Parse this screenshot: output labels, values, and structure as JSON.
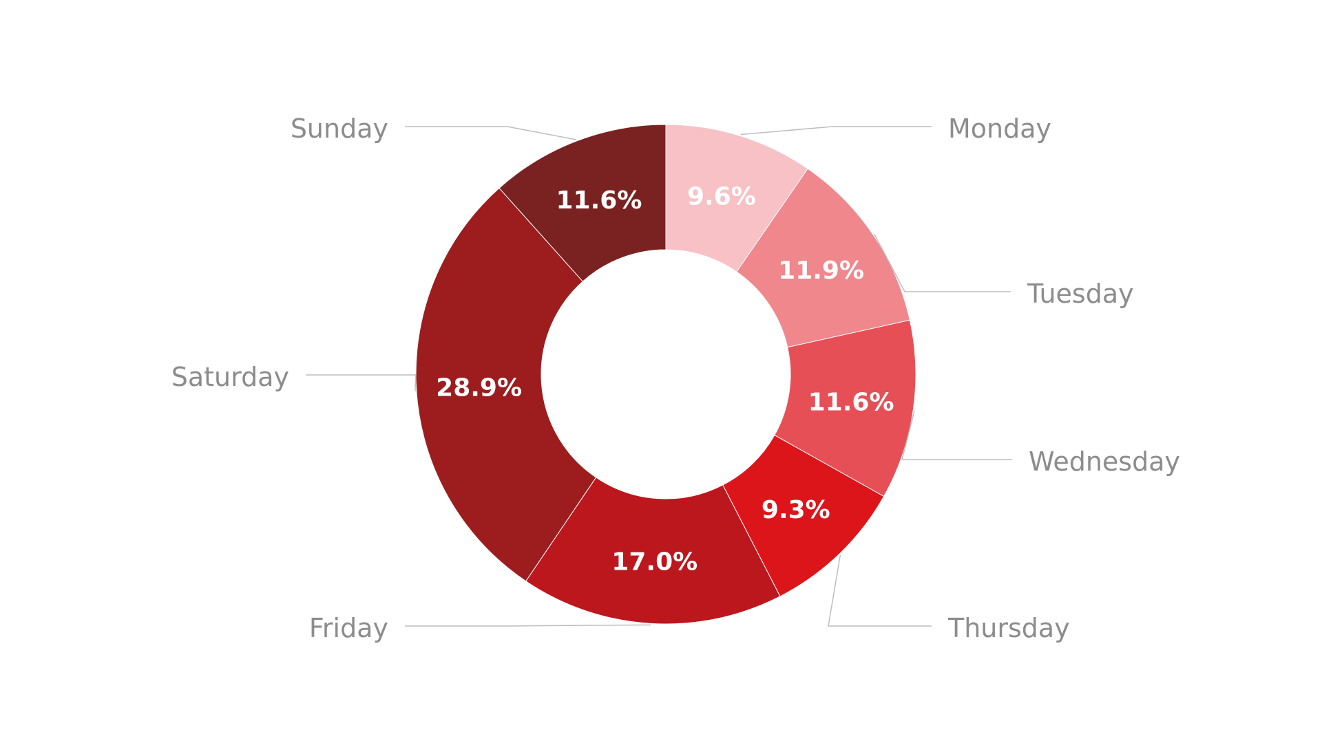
{
  "chart_data": {
    "type": "pie",
    "variant": "donut",
    "title": "",
    "slices": [
      {
        "label": "Monday",
        "value": 9.6,
        "display": "9.6%",
        "color": "#F7C1C5"
      },
      {
        "label": "Tuesday",
        "value": 11.9,
        "display": "11.9%",
        "color": "#EF878C"
      },
      {
        "label": "Wednesday",
        "value": 11.6,
        "display": "11.6%",
        "color": "#E74F57"
      },
      {
        "label": "Thursday",
        "value": 9.3,
        "display": "9.3%",
        "color": "#DC151B"
      },
      {
        "label": "Friday",
        "value": 17.0,
        "display": "17.0%",
        "color": "#BC171D"
      },
      {
        "label": "Saturday",
        "value": 28.9,
        "display": "28.9%",
        "color": "#9D1D1F"
      },
      {
        "label": "Sunday",
        "value": 11.6,
        "display": "11.6%",
        "color": "#7A2221"
      }
    ],
    "start_angle": "12 o'clock",
    "direction": "clockwise",
    "legend": "none (leader-line labels outside)"
  }
}
